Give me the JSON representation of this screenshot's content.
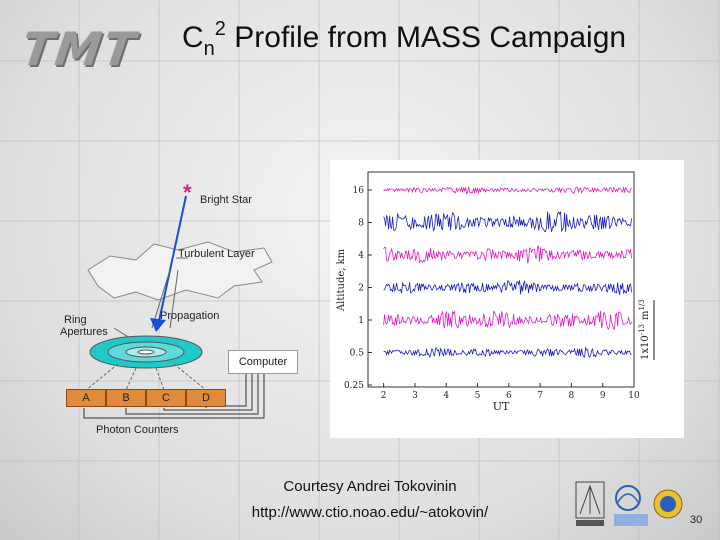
{
  "slide": {
    "logo_text": "TMT",
    "title": {
      "base": "C",
      "subscript": "n",
      "superscript": "2",
      "rest": " Profile from MASS Campaign"
    },
    "page_number": "30",
    "credit": {
      "line1": "Courtesy Andrei Tokovinin",
      "line2": "http://www.ctio.noao.edu/~atokovin/"
    }
  },
  "diagram": {
    "star_symbol": "*",
    "bright_star": "Bright Star",
    "turbulent_layer": "Turbulent Layer",
    "ring_apertures": [
      "Ring",
      "Apertures"
    ],
    "propagation": "Propagation",
    "computer": "Computer",
    "counters": [
      "A",
      "B",
      "C",
      "D"
    ],
    "photon_counters": "Photon Counters",
    "colors": {
      "star": "#e0208a",
      "arrow": "#1a4fd0",
      "ring": "#20c8c8",
      "counter": "#e08a3a"
    }
  },
  "chart_data": {
    "type": "line",
    "xlabel": "UT",
    "ylabel": "Altitude, km",
    "x_ticks": [
      2,
      3,
      4,
      5,
      6,
      7,
      8,
      9,
      10
    ],
    "xlim": [
      1.5,
      10
    ],
    "y_levels": [
      "16",
      "8",
      "4",
      "2",
      "1",
      "0.5",
      "0.25"
    ],
    "scale_label": "1x10",
    "scale_exp": "-13",
    "scale_unit": "m",
    "scale_unit_exp": "1/3",
    "series_colors": [
      "#e020c0",
      "#2020c0",
      "#e020c0",
      "#2020c0",
      "#e020c0",
      "#2020c0"
    ]
  }
}
